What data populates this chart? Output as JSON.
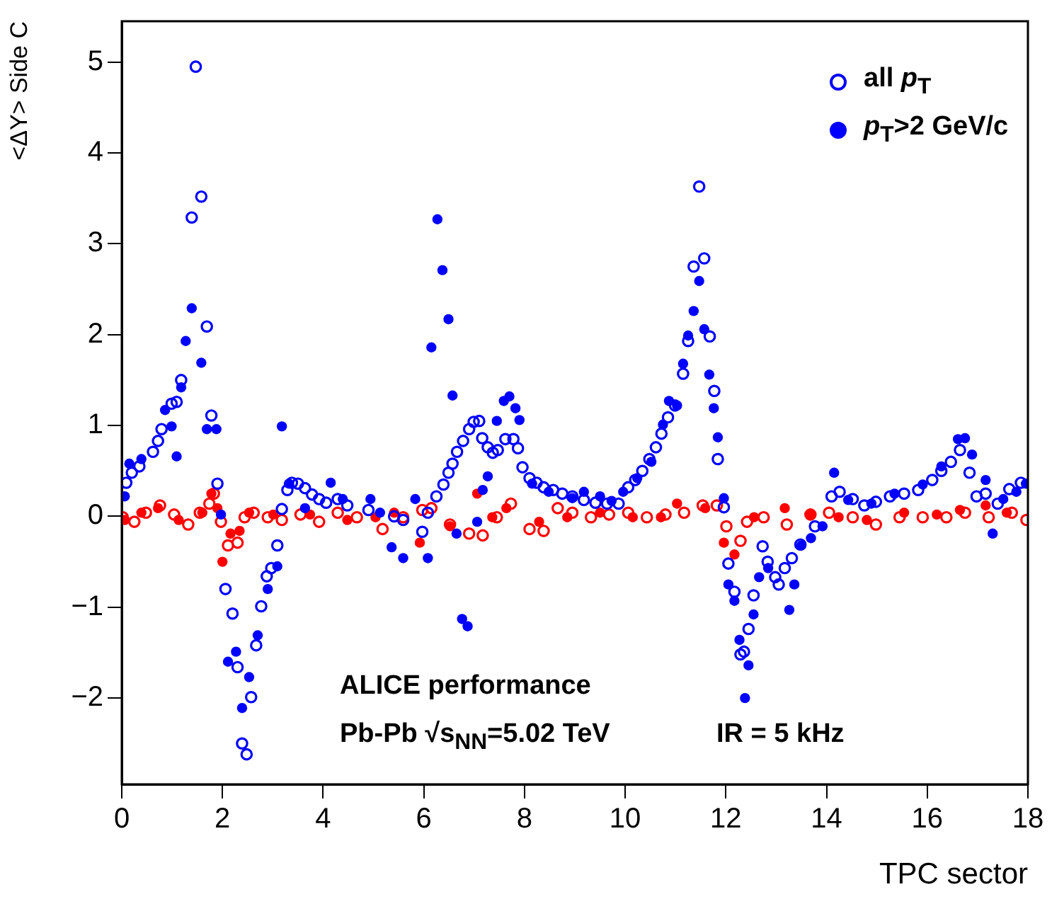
{
  "chart_data": {
    "type": "scatter",
    "xlabel": "TPC sector",
    "ylabel": "<ΔY> Side C",
    "xlim": [
      0,
      18
    ],
    "xticks": [
      0,
      2,
      4,
      6,
      8,
      10,
      12,
      14,
      16,
      18
    ],
    "ylim": [
      -2.95,
      5.45
    ],
    "yticks": [
      {
        "value": -2,
        "label": "−2"
      },
      {
        "value": -1,
        "label": "−1"
      },
      0,
      1,
      2,
      3,
      4,
      5
    ],
    "grid": false,
    "legend": "top right",
    "annotations": [
      "ALICE performance",
      "Pb-Pb √s$_{NN}$=5.02 TeV",
      "IR = 5 kHz"
    ],
    "series": [
      {
        "name": "all p$_{T}$",
        "color": "#0000ff",
        "marker": "circle-open",
        "x": [
          0.09,
          0.2,
          0.35,
          0.62,
          0.72,
          0.79,
          0.99,
          1.09,
          1.18,
          1.39,
          1.47,
          1.58,
          1.69,
          1.78,
          1.9,
          2.06,
          2.2,
          2.3,
          2.39,
          2.48,
          2.57,
          2.67,
          2.77,
          2.88,
          2.97,
          3.09,
          3.18,
          3.29,
          3.38,
          3.5,
          3.64,
          3.78,
          3.92,
          4.06,
          4.29,
          4.48,
          4.9,
          5.41,
          5.59,
          5.97,
          6.08,
          6.25,
          6.39,
          6.49,
          6.57,
          6.66,
          6.78,
          6.9,
          6.99,
          7.1,
          7.16,
          7.27,
          7.37,
          7.47,
          7.62,
          7.78,
          7.87,
          7.96,
          8.1,
          8.24,
          8.38,
          8.57,
          8.75,
          8.95,
          9.18,
          9.41,
          9.64,
          9.87,
          10.06,
          10.2,
          10.34,
          10.48,
          10.61,
          10.72,
          10.85,
          10.99,
          11.15,
          11.25,
          11.36,
          11.47,
          11.57,
          11.68,
          11.77,
          11.84,
          11.96,
          12.05,
          12.17,
          12.29,
          12.36,
          12.45,
          12.55,
          12.73,
          12.83,
          12.98,
          13.05,
          13.17,
          13.31,
          13.48,
          13.77,
          14.1,
          14.26,
          14.52,
          14.75,
          14.98,
          15.26,
          15.54,
          15.82,
          16.1,
          16.28,
          16.47,
          16.65,
          16.84,
          16.98,
          17.16,
          17.4,
          17.63,
          17.86
        ],
        "values": [
          0.37,
          0.48,
          0.55,
          0.71,
          0.83,
          0.96,
          1.24,
          1.26,
          1.5,
          3.29,
          4.95,
          3.52,
          2.09,
          1.11,
          0.36,
          -0.8,
          -1.07,
          -1.66,
          -2.5,
          -2.62,
          -1.99,
          -1.42,
          -0.99,
          -0.66,
          -0.57,
          -0.32,
          0.08,
          0.29,
          0.37,
          0.36,
          0.31,
          0.24,
          0.19,
          0.15,
          0.19,
          0.12,
          0.07,
          0,
          -0.04,
          -0.17,
          0.04,
          0.22,
          0.35,
          0.48,
          0.58,
          0.71,
          0.83,
          0.96,
          1.04,
          1.05,
          0.86,
          0.76,
          0.7,
          0.73,
          0.85,
          0.85,
          0.75,
          0.54,
          0.42,
          0.37,
          0.32,
          0.29,
          0.25,
          0.22,
          0.18,
          0.15,
          0.14,
          0.14,
          0.32,
          0.4,
          0.5,
          0.63,
          0.76,
          0.91,
          1.09,
          1.22,
          1.57,
          1.93,
          2.75,
          3.63,
          2.84,
          1.98,
          1.38,
          0.63,
          0.1,
          -0.52,
          -0.83,
          -1.52,
          -1.49,
          -1.24,
          -0.87,
          -0.33,
          -0.5,
          -0.67,
          -0.75,
          -0.57,
          -0.46,
          -0.31,
          -0.11,
          0.22,
          0.27,
          0.19,
          0.12,
          0.16,
          0.22,
          0.25,
          0.29,
          0.4,
          0.5,
          0.6,
          0.73,
          0.48,
          0.22,
          0.25,
          0.14,
          0.3,
          0.37
        ]
      },
      {
        "name": "p$_{T}$>2 GeV/c",
        "color": "#0000ff",
        "marker": "circle",
        "x": [
          0.06,
          0.15,
          0.39,
          0.86,
          0.99,
          1.09,
          1.18,
          1.27,
          1.39,
          1.58,
          1.69,
          1.88,
          1.97,
          2.11,
          2.27,
          2.39,
          2.53,
          2.7,
          2.9,
          3.09,
          3.18,
          3.32,
          3.64,
          4.15,
          4.39,
          4.94,
          5.13,
          5.36,
          5.59,
          5.83,
          6.08,
          6.15,
          6.27,
          6.37,
          6.49,
          6.57,
          6.65,
          6.76,
          6.87,
          7.06,
          7.17,
          7.27,
          7.45,
          7.59,
          7.7,
          7.82,
          7.9,
          8.15,
          8.48,
          8.95,
          9.18,
          9.5,
          9.73,
          9.96,
          10.24,
          10.52,
          10.75,
          10.87,
          11.03,
          11.15,
          11.25,
          11.36,
          11.47,
          11.57,
          11.67,
          11.76,
          11.84,
          11.96,
          12.05,
          12.17,
          12.27,
          12.38,
          12.45,
          12.55,
          12.66,
          12.84,
          13.26,
          13.36,
          13.5,
          13.69,
          13.92,
          14.15,
          14.43,
          14.89,
          15.35,
          15.91,
          16.28,
          16.61,
          16.75,
          16.89,
          17.16,
          17.3,
          17.51,
          17.77,
          17.96
        ],
        "values": [
          0.22,
          0.58,
          0.63,
          1.17,
          0.99,
          0.66,
          1.42,
          1.93,
          2.29,
          1.69,
          0.96,
          0.96,
          0.02,
          -1.6,
          -1.49,
          -2.11,
          -1.77,
          -1.31,
          -0.8,
          -0.55,
          0.99,
          0.36,
          0.09,
          0.37,
          0.19,
          0.19,
          0.04,
          -0.34,
          -0.46,
          0.19,
          -0.46,
          1.86,
          3.27,
          2.71,
          2.17,
          1.33,
          -0.19,
          -1.13,
          -1.21,
          -0.06,
          0.29,
          0.44,
          1.05,
          1.27,
          1.32,
          1.19,
          1.06,
          0.36,
          0.27,
          0.2,
          0.27,
          0.22,
          0.17,
          0.27,
          0.42,
          0.6,
          1.01,
          1.27,
          1.22,
          1.68,
          1.99,
          2.26,
          2.59,
          2.06,
          1.56,
          1.19,
          0.87,
          0.2,
          -0.75,
          -0.93,
          -1.36,
          -2,
          -1.64,
          -1.08,
          -0.67,
          -0.57,
          -1.03,
          -0.75,
          -0.32,
          -0.24,
          -0.11,
          0.48,
          0.18,
          0.14,
          0.25,
          0.35,
          0.55,
          0.85,
          0.86,
          0.68,
          0.4,
          -0.19,
          0.19,
          0.27,
          0.36
        ]
      },
      {
        "color": "#ff0000",
        "marker": "circle-open",
        "x": [
          0.02,
          0.25,
          0.48,
          0.76,
          1.04,
          1.32,
          1.55,
          1.74,
          1.83,
          1.97,
          2.11,
          2.3,
          2.44,
          2.62,
          2.9,
          3.18,
          3.55,
          3.92,
          4.29,
          4.67,
          5.18,
          5.59,
          5.97,
          6.15,
          6.52,
          6.9,
          7.17,
          7.45,
          7.73,
          8.1,
          8.38,
          8.66,
          8.95,
          9.32,
          9.68,
          10.06,
          10.43,
          10.8,
          11.17,
          11.54,
          11.82,
          12.01,
          12.29,
          12.42,
          12.75,
          13.21,
          13.68,
          14.05,
          14.52,
          14.98,
          15.45,
          15.91,
          16.38,
          16.75,
          17.22,
          17.68,
          17.97
        ],
        "values": [
          -0.01,
          -0.06,
          0.04,
          0.12,
          0.02,
          -0.09,
          0.04,
          0.14,
          0.25,
          -0.06,
          -0.32,
          -0.29,
          -0.01,
          0.04,
          -0.01,
          -0.04,
          0.02,
          -0.06,
          0.04,
          -0.01,
          -0.14,
          -0.01,
          0.07,
          0.09,
          -0.09,
          -0.19,
          -0.21,
          -0.01,
          0.14,
          -0.14,
          -0.16,
          0.09,
          0.04,
          -0.01,
          0.02,
          0.04,
          -0.01,
          0.02,
          0.04,
          0.12,
          0.12,
          -0.11,
          -0.27,
          -0.06,
          -0.01,
          -0.09,
          0.02,
          0.04,
          -0.01,
          -0.09,
          -0.01,
          -0.01,
          -0.01,
          0.04,
          -0.01,
          0.04,
          -0.04
        ]
      },
      {
        "color": "#ff0000",
        "marker": "circle",
        "x": [
          0.06,
          0.39,
          0.72,
          1.13,
          1.6,
          1.78,
          1.9,
          2,
          2.16,
          2.34,
          2.53,
          3.01,
          3.74,
          4.48,
          5.04,
          5.41,
          5.92,
          6.52,
          7.06,
          7.36,
          7.64,
          8.29,
          8.85,
          9.5,
          10.15,
          10.71,
          11.03,
          11.59,
          11.96,
          12.17,
          12.56,
          13.17,
          13.68,
          14.24,
          14.8,
          15.54,
          16.19,
          16.65,
          17.16,
          17.58
        ],
        "values": [
          -0.04,
          0.04,
          0.09,
          -0.04,
          0.04,
          0.25,
          0.09,
          -0.5,
          -0.19,
          -0.16,
          0.04,
          0.02,
          0.02,
          -0.04,
          -0.01,
          0.04,
          -0.29,
          -0.11,
          0.25,
          -0.01,
          0.09,
          -0.06,
          -0.01,
          0.04,
          -0.01,
          -0.01,
          0.14,
          0.09,
          -0.29,
          -0.42,
          -0.01,
          0.09,
          0.02,
          -0.01,
          -0.04,
          0.04,
          0.02,
          0.07,
          0.12,
          0.04
        ]
      }
    ]
  }
}
